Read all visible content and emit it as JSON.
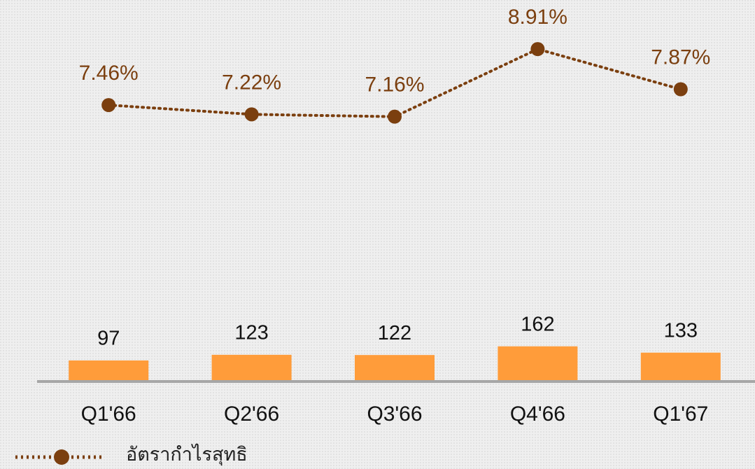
{
  "chart_data": {
    "type": "combo",
    "categories": [
      "Q1'66",
      "Q2'66",
      "Q3'66",
      "Q4'66",
      "Q1'67"
    ],
    "series": [
      {
        "type": "bar",
        "color": "#ff9c3a",
        "values": [
          97,
          123,
          122,
          162,
          133
        ]
      },
      {
        "type": "line",
        "name": "อัตรากำไรสุทธิ",
        "color": "#7b3f0f",
        "axis": "y2",
        "values": [
          7.46,
          7.22,
          7.16,
          8.91,
          7.87
        ],
        "value_labels": [
          "7.46%",
          "7.22%",
          "7.16%",
          "8.91%",
          "7.87%"
        ]
      }
    ],
    "ylim": [
      0,
      500
    ],
    "y2lim": [
      4,
      10
    ],
    "legend": "bottom-left"
  }
}
